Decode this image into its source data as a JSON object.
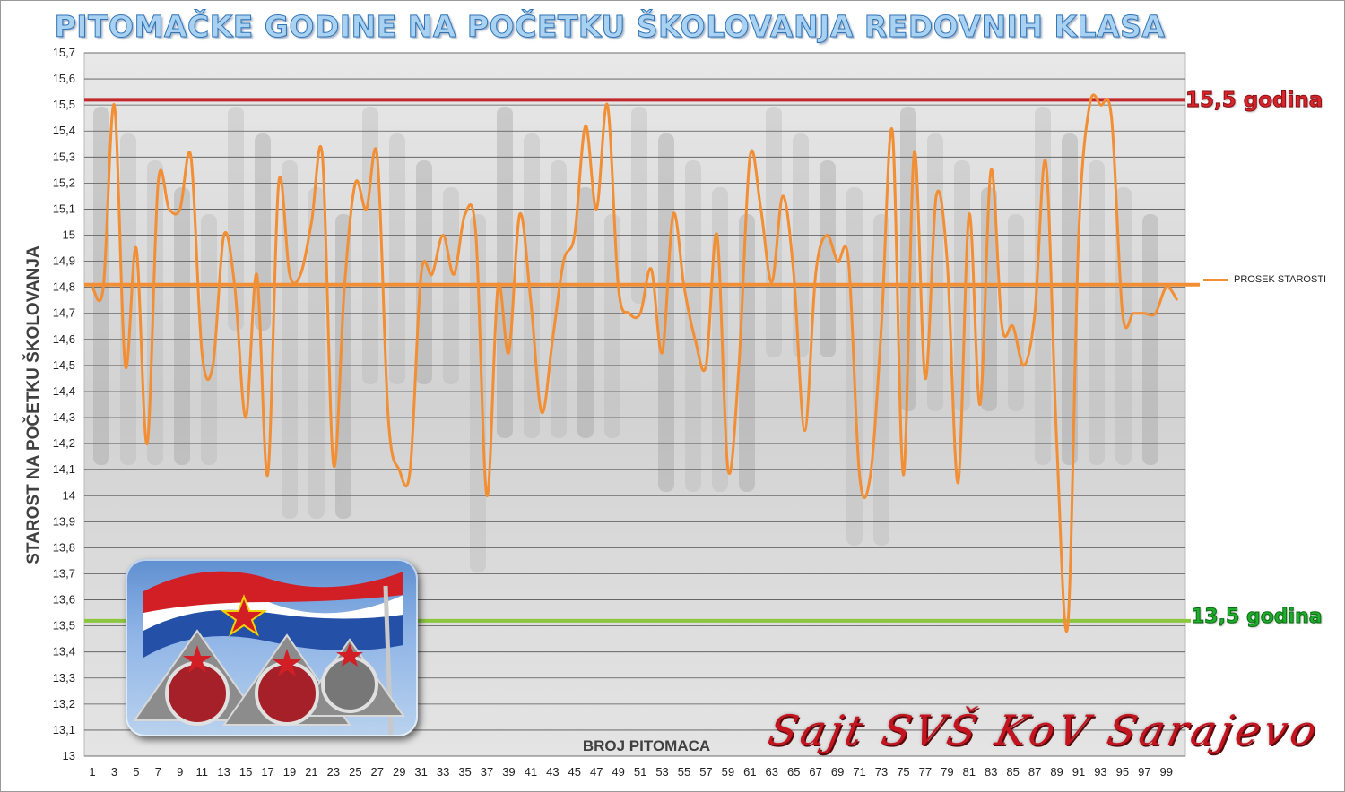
{
  "chart_data": {
    "type": "line",
    "title": "PITOMAČKE GODINE NA POČETKU ŠKOLOVANJA REDOVNIH KLASA",
    "xlabel": "BROJ PITOMACA",
    "ylabel": "STAROST NA POČETKU ŠKOLOVANJA",
    "ylim": [
      13,
      15.7
    ],
    "y_ticks": [
      "13",
      "13,1",
      "13,2",
      "13,3",
      "13,4",
      "13,5",
      "13,6",
      "13,7",
      "13,8",
      "13,9",
      "14",
      "14,1",
      "14,2",
      "14,3",
      "14,4",
      "14,5",
      "14,6",
      "14,7",
      "14,8",
      "14,9",
      "15",
      "15,1",
      "15,2",
      "15,3",
      "15,4",
      "15,5",
      "15,6",
      "15,7"
    ],
    "x_ticks": [
      "1",
      "3",
      "5",
      "7",
      "9",
      "11",
      "13",
      "15",
      "17",
      "19",
      "21",
      "23",
      "25",
      "27",
      "29",
      "31",
      "33",
      "35",
      "37",
      "39",
      "41",
      "43",
      "45",
      "47",
      "49",
      "51",
      "53",
      "55",
      "57",
      "59",
      "61",
      "63",
      "65",
      "67",
      "69",
      "71",
      "73",
      "75",
      "77",
      "79",
      "81",
      "83",
      "85",
      "87",
      "89",
      "91",
      "93",
      "95",
      "97",
      "99"
    ],
    "x": [
      1,
      2,
      3,
      4,
      5,
      6,
      7,
      8,
      9,
      10,
      11,
      12,
      13,
      14,
      15,
      16,
      17,
      18,
      19,
      20,
      21,
      22,
      23,
      24,
      25,
      26,
      27,
      28,
      29,
      30,
      31,
      32,
      33,
      34,
      35,
      36,
      37,
      38,
      39,
      40,
      41,
      42,
      43,
      44,
      45,
      46,
      47,
      48,
      49,
      50,
      51,
      52,
      53,
      54,
      55,
      56,
      57,
      58,
      59,
      60,
      61,
      62,
      63,
      64,
      65,
      66,
      67,
      68,
      69,
      70,
      71,
      72,
      73,
      74,
      75,
      76,
      77,
      78,
      79,
      80,
      81,
      82,
      83,
      84,
      85,
      86,
      87,
      88,
      89,
      90,
      91,
      92,
      93,
      94,
      95,
      96,
      97,
      98,
      99,
      100
    ],
    "series": [
      {
        "name": "PROSEK STAROSTI",
        "color": "#f28e33",
        "values": [
          14.8,
          14.8,
          15.5,
          14.5,
          14.95,
          14.2,
          15.2,
          15.1,
          15.1,
          15.3,
          14.55,
          14.5,
          15.0,
          14.8,
          14.3,
          14.85,
          14.08,
          15.2,
          14.85,
          14.85,
          15.05,
          15.3,
          14.12,
          14.8,
          15.2,
          15.1,
          15.3,
          14.3,
          14.1,
          14.1,
          14.85,
          14.85,
          15.0,
          14.85,
          15.08,
          15.0,
          14.0,
          14.8,
          14.55,
          15.08,
          14.75,
          14.32,
          14.6,
          14.9,
          15.0,
          15.42,
          15.1,
          15.5,
          14.8,
          14.7,
          14.7,
          14.87,
          14.55,
          15.08,
          14.8,
          14.6,
          14.5,
          15.0,
          14.1,
          14.5,
          15.3,
          15.1,
          14.82,
          15.15,
          14.85,
          14.25,
          14.85,
          15.0,
          14.9,
          14.9,
          14.08,
          14.08,
          14.65,
          15.4,
          14.08,
          15.32,
          14.45,
          15.15,
          14.9,
          14.05,
          15.08,
          14.35,
          15.25,
          14.65,
          14.65,
          14.5,
          14.7,
          15.28,
          14.2,
          13.5,
          15.0,
          15.5,
          15.5,
          15.45,
          14.7,
          14.7,
          14.7,
          14.7,
          14.8,
          14.75
        ]
      }
    ],
    "reference_lines": [
      {
        "value": 15.52,
        "label": "15,5 godina",
        "color": "#c0282e"
      },
      {
        "value": 14.81,
        "label": "",
        "color": "#f28e33"
      },
      {
        "value": 13.52,
        "label": "13,5 godina",
        "color": "#8cc63f"
      }
    ],
    "legend": {
      "placement": "right",
      "entries": [
        "PROSEK STAROSTI"
      ]
    },
    "grid": true
  },
  "watermark": "Sajt SVŠ KoV Sarajevo",
  "emblem_icon": "yugoslav-flag-badges-icon"
}
